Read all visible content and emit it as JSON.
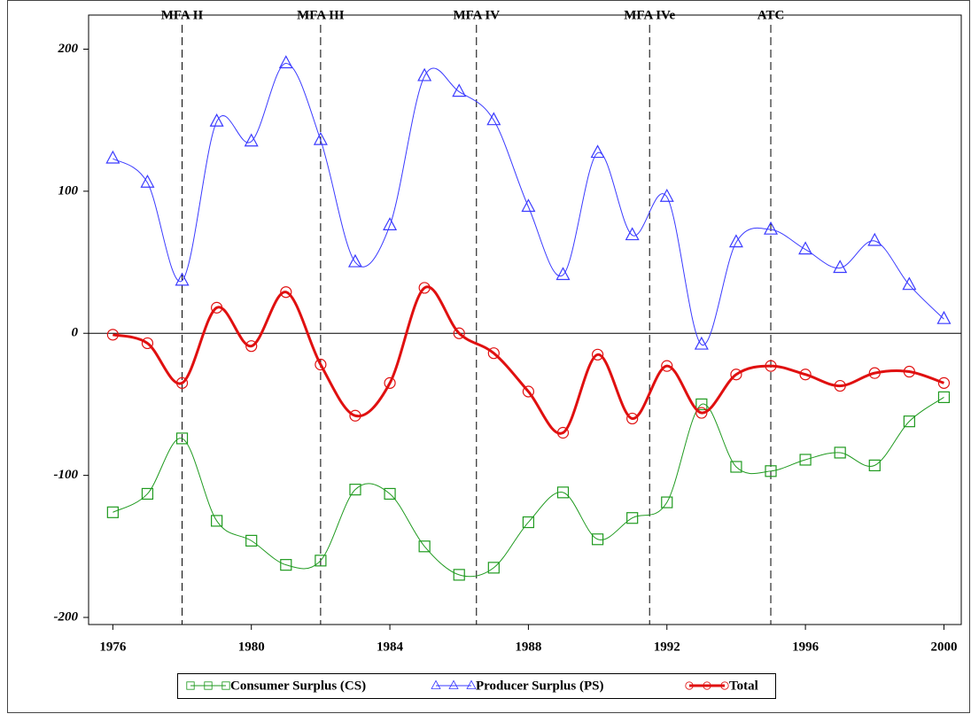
{
  "chart_data": {
    "type": "line",
    "x": [
      1976,
      1977,
      1978,
      1979,
      1980,
      1981,
      1982,
      1983,
      1984,
      1985,
      1986,
      1987,
      1988,
      1989,
      1990,
      1991,
      1992,
      1993,
      1994,
      1995,
      1996,
      1997,
      1998,
      1999,
      2000
    ],
    "series": [
      {
        "name": "Consumer Surplus (CS)",
        "color": "#1f9a1f",
        "marker": "square",
        "values": [
          -126,
          -113,
          -74,
          -132,
          -146,
          -163,
          -160,
          -110,
          -113,
          -150,
          -170,
          -165,
          -133,
          -112,
          -145,
          -130,
          -119,
          -50,
          -94,
          -97,
          -89,
          -84,
          -93,
          -62,
          -45
        ]
      },
      {
        "name": "Producer Surplus (PS)",
        "color": "#3a3aff",
        "marker": "triangle",
        "values": [
          123,
          106,
          37,
          149,
          135,
          190,
          136,
          50,
          76,
          181,
          170,
          150,
          89,
          41,
          127,
          69,
          96,
          -8,
          64,
          73,
          59,
          46,
          65,
          34,
          10
        ]
      },
      {
        "name": "Total",
        "color": "#e01010",
        "marker": "circle",
        "values": [
          -1,
          -7,
          -35,
          18,
          -9,
          29,
          -22,
          -58,
          -35,
          32,
          0,
          -14,
          -41,
          -70,
          -15,
          -60,
          -23,
          -56,
          -29,
          -23,
          -29,
          -37,
          -28,
          -27,
          -35
        ]
      }
    ],
    "annotations": [
      {
        "text": "MFA II",
        "x": 1978
      },
      {
        "text": "MFA III",
        "x": 1982
      },
      {
        "text": "MFA IV",
        "x": 1986.5
      },
      {
        "text": "MFA IVe",
        "x": 1991.5
      },
      {
        "text": "ATC",
        "x": 1995
      }
    ],
    "xlim": [
      1975.3,
      2000.5
    ],
    "xticks": [
      1976,
      1980,
      1984,
      1988,
      1992,
      1996,
      2000
    ],
    "ylim": [
      -205,
      224
    ],
    "yticks": [
      -200,
      -100,
      0,
      100,
      200
    ],
    "legend": "bottom"
  }
}
